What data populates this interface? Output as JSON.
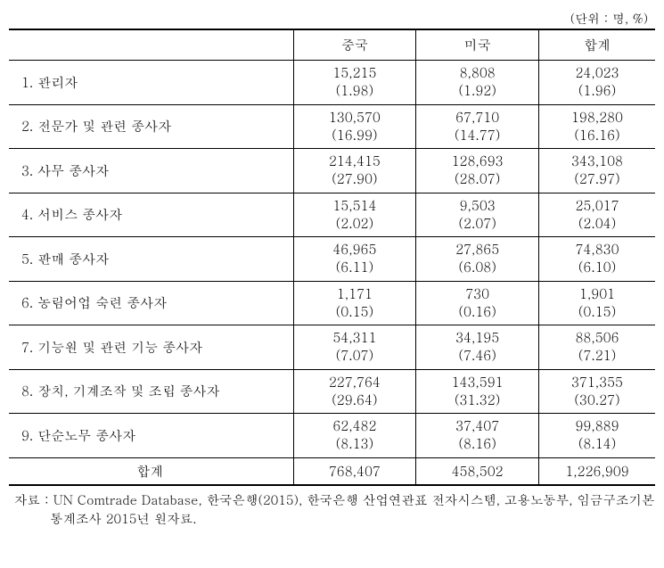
{
  "unit_label": "(단위 : 명, %)",
  "columns": {
    "empty": "",
    "c1": "중국",
    "c2": "미국",
    "c3": "합계"
  },
  "rows": [
    {
      "label": "1. 관리자",
      "c1_v": "15,215",
      "c1_p": "(1.98)",
      "c2_v": "8,808",
      "c2_p": "(1.92)",
      "c3_v": "24,023",
      "c3_p": "(1.96)"
    },
    {
      "label": "2. 전문가 및 관련 종사자",
      "c1_v": "130,570",
      "c1_p": "(16.99)",
      "c2_v": "67,710",
      "c2_p": "(14.77)",
      "c3_v": "198,280",
      "c3_p": "(16.16)"
    },
    {
      "label": "3. 사무 종사자",
      "c1_v": "214,415",
      "c1_p": "(27.90)",
      "c2_v": "128,693",
      "c2_p": "(28.07)",
      "c3_v": "343,108",
      "c3_p": "(27.97)"
    },
    {
      "label": "4. 서비스 종사자",
      "c1_v": "15,514",
      "c1_p": "(2.02)",
      "c2_v": "9,503",
      "c2_p": "(2.07)",
      "c3_v": "25,017",
      "c3_p": "(2.04)"
    },
    {
      "label": "5. 판매 종사자",
      "c1_v": "46,965",
      "c1_p": "(6.11)",
      "c2_v": "27,865",
      "c2_p": "(6.08)",
      "c3_v": "74,830",
      "c3_p": "(6.10)"
    },
    {
      "label": "6. 농림어업 숙련 종사자",
      "c1_v": "1,171",
      "c1_p": "(0.15)",
      "c2_v": "730",
      "c2_p": "(0.16)",
      "c3_v": "1,901",
      "c3_p": "(0.15)"
    },
    {
      "label": "7. 기능원 및 관련 기능 종사자",
      "c1_v": "54,311",
      "c1_p": "(7.07)",
      "c2_v": "34,195",
      "c2_p": "(7.46)",
      "c3_v": "88,506",
      "c3_p": "(7.21)"
    },
    {
      "label": "8. 장치, 기계조작 및 조립 종사자",
      "c1_v": "227,764",
      "c1_p": "(29.64)",
      "c2_v": "143,591",
      "c2_p": "(31.32)",
      "c3_v": "371,355",
      "c3_p": "(30.27)"
    },
    {
      "label": "9. 단순노무 종사자",
      "c1_v": "62,482",
      "c1_p": "(8.13)",
      "c2_v": "37,407",
      "c2_p": "(8.16)",
      "c3_v": "99,889",
      "c3_p": "(8.14)"
    }
  ],
  "total": {
    "label": "합계",
    "c1": "768,407",
    "c2": "458,502",
    "c3": "1,226,909"
  },
  "source": "자료 : UN Comtrade Database, 한국은행(2015), 한국은행 산업연관표 전자시스템, 고용노동부, 임금구조기본통계조사 2015년 원자료.",
  "style": {
    "font_family": "Batang, serif",
    "font_size_body": 15,
    "font_size_unit": 14,
    "font_size_source": 14.5,
    "border_color": "#000000",
    "background_color": "#ffffff",
    "text_color": "#000000",
    "col_widths_pct": [
      44,
      19,
      19,
      18
    ]
  }
}
